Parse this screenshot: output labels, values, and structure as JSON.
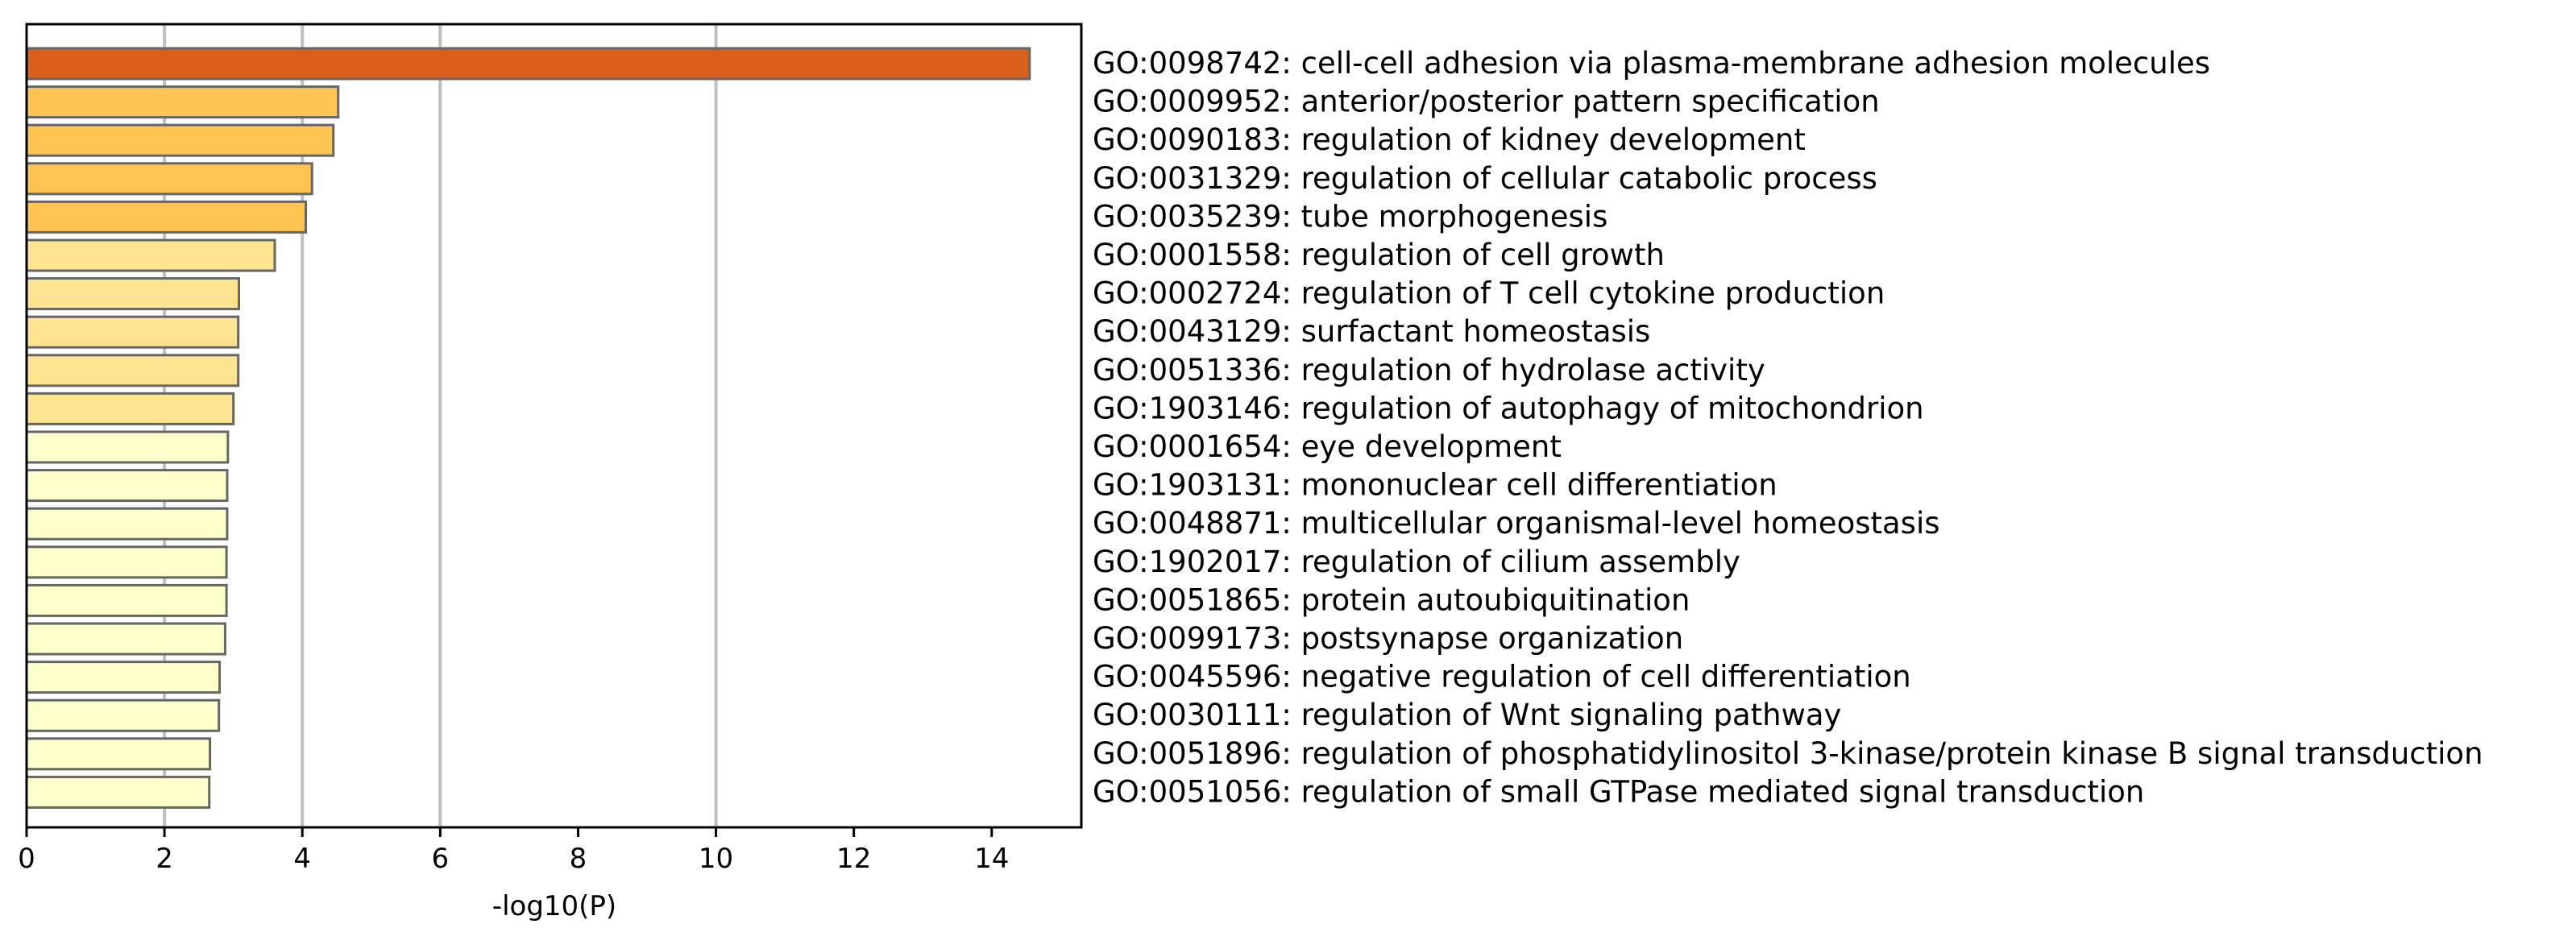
{
  "chart_data": {
    "type": "bar",
    "orientation": "horizontal",
    "title": "",
    "xlabel": "-log10(P)",
    "ylabel": "",
    "xlim": [
      0,
      15.3
    ],
    "xticks": [
      0,
      2,
      4,
      6,
      8,
      10,
      12,
      14
    ],
    "grid": "vertical lines at 2, 4, 6, 10",
    "gridlines": [
      2,
      4,
      6,
      10
    ],
    "categories": [
      "GO:0098742: cell-cell adhesion via plasma-membrane adhesion molecules",
      "GO:0009952: anterior/posterior pattern specification",
      "GO:0090183: regulation of kidney development",
      "GO:0031329: regulation of cellular catabolic process",
      "GO:0035239: tube morphogenesis",
      "GO:0001558: regulation of cell growth",
      "GO:0002724: regulation of T cell cytokine production",
      "GO:0043129: surfactant homeostasis",
      "GO:0051336: regulation of hydrolase activity",
      "GO:1903146: regulation of autophagy of mitochondrion",
      "GO:0001654: eye development",
      "GO:1903131: mononuclear cell differentiation",
      "GO:0048871: multicellular organismal-level homeostasis",
      "GO:1902017: regulation of cilium assembly",
      "GO:0051865: protein autoubiquitination",
      "GO:0099173: postsynapse organization",
      "GO:0045596: negative regulation of cell differentiation",
      "GO:0030111: regulation of Wnt signaling pathway",
      "GO:0051896: regulation of phosphatidylinositol 3-kinase/protein kinase B signal transduction",
      "GO:0051056: regulation of small GTPase mediated signal transduction"
    ],
    "values": [
      14.55,
      4.52,
      4.45,
      4.14,
      4.05,
      3.6,
      3.08,
      3.07,
      3.07,
      3.0,
      2.92,
      2.91,
      2.91,
      2.9,
      2.9,
      2.88,
      2.8,
      2.79,
      2.66,
      2.65
    ],
    "colors": [
      "#D95F1A",
      "#FEC44F",
      "#FEC44F",
      "#FEC44F",
      "#FEC44F",
      "#FEE391",
      "#FEE391",
      "#FEE391",
      "#FEE391",
      "#FEE391",
      "#FFFFCC",
      "#FFFFCC",
      "#FFFFCC",
      "#FFFFCC",
      "#FFFFCC",
      "#FFFFCC",
      "#FFFFCC",
      "#FFFFCC",
      "#FFFFCC",
      "#FFFFCC"
    ],
    "bar_edge_color": "#666666",
    "grid_color": "#BFBFBF"
  }
}
